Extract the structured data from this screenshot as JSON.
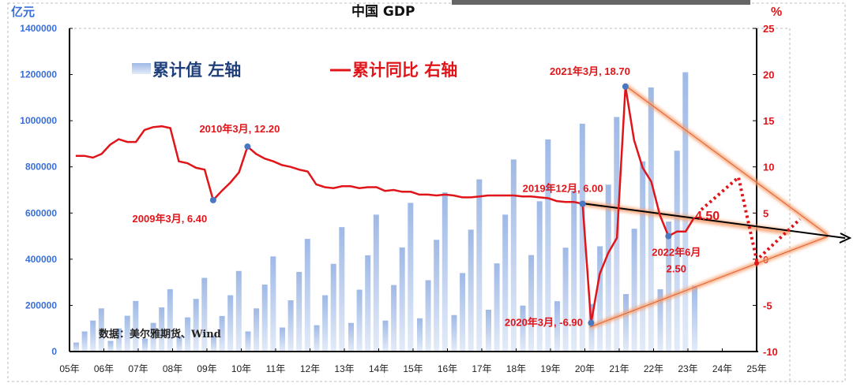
{
  "chart_data": {
    "type": "bar+line",
    "title": "中国  GDP",
    "ylabel_left": "亿元",
    "ylabel_right": "%",
    "ylim_left": [
      0,
      1400000
    ],
    "ylim_right": [
      -10,
      25
    ],
    "left_ticks": [
      "0",
      "200000",
      "400000",
      "600000",
      "800000",
      "1000000",
      "1200000",
      "1400000"
    ],
    "right_ticks": [
      "-10",
      "-5",
      "0",
      "5",
      "10",
      "15",
      "20",
      "25"
    ],
    "x_ticks": [
      "05年",
      "06年",
      "07年",
      "08年",
      "09年",
      "10年",
      "11年",
      "12年",
      "13年",
      "14年",
      "15年",
      "16年",
      "17年",
      "18年",
      "19年",
      "20年",
      "21年",
      "22年",
      "23年",
      "24年",
      "25年"
    ],
    "legend": {
      "bar": "累计值 左轴",
      "line": "累计同比 右轴"
    },
    "source": "数据：美尔雅期货、Wind",
    "series": [
      {
        "name": "累计值",
        "type": "bar",
        "axis": "left",
        "values": [
          39000,
          87000,
          134000,
          187000,
          46000,
          100000,
          155000,
          219000,
          56000,
          124000,
          191000,
          270000,
          68000,
          148000,
          228000,
          319000,
          70000,
          154000,
          244000,
          349000,
          87000,
          187000,
          290000,
          412000,
          104000,
          222000,
          345000,
          488000,
          114000,
          244000,
          380000,
          539000,
          124000,
          268000,
          417000,
          593000,
          134000,
          288000,
          451000,
          644000,
          144000,
          309000,
          484000,
          689000,
          158000,
          340000,
          528000,
          746000,
          181000,
          382000,
          593000,
          832000,
          199000,
          418000,
          651000,
          919000,
          218000,
          450000,
          697000,
          987000,
          206000,
          456000,
          723000,
          1016000,
          249000,
          532000,
          824000,
          1144000,
          270000,
          563000,
          870000,
          1210000,
          285000
        ]
      },
      {
        "name": "累计同比",
        "type": "line",
        "axis": "right",
        "values": [
          11.2,
          11.2,
          11.0,
          11.4,
          12.4,
          13.0,
          12.7,
          12.7,
          14.0,
          14.3,
          14.4,
          14.2,
          10.6,
          10.4,
          9.9,
          9.7,
          6.4,
          7.4,
          8.3,
          9.4,
          12.2,
          11.4,
          10.9,
          10.6,
          10.2,
          10.0,
          9.7,
          9.5,
          8.1,
          7.8,
          7.7,
          7.9,
          7.9,
          7.7,
          7.8,
          7.8,
          7.4,
          7.5,
          7.3,
          7.3,
          7.0,
          7.0,
          6.9,
          7.0,
          6.9,
          6.7,
          6.7,
          6.8,
          6.9,
          6.9,
          6.9,
          6.9,
          6.8,
          6.8,
          6.7,
          6.6,
          6.3,
          6.2,
          6.2,
          6.0,
          -6.9,
          -1.6,
          0.7,
          2.3,
          18.7,
          12.9,
          9.9,
          8.4,
          4.8,
          2.5,
          3.0,
          3.0,
          4.5
        ]
      }
    ],
    "x_start": "2005Q1",
    "annotations": [
      {
        "text": "2009年3月, 6.40",
        "index": 16
      },
      {
        "text": "2010年3月, 12.20",
        "index": 20
      },
      {
        "text": "2019年12月, 6.00",
        "index": 59
      },
      {
        "text": "2020年3月, -6.90",
        "index": 60
      },
      {
        "text": "2021年3月, 18.70",
        "index": 64
      },
      {
        "text": "2022年6月",
        "text2": "2.50",
        "index": 69
      },
      {
        "text": "4.50"
      }
    ],
    "colors": {
      "bar": "#a9c1ea",
      "line": "#e0151a",
      "left_axis": "#3a6fd8",
      "trend": "#f08040"
    }
  }
}
